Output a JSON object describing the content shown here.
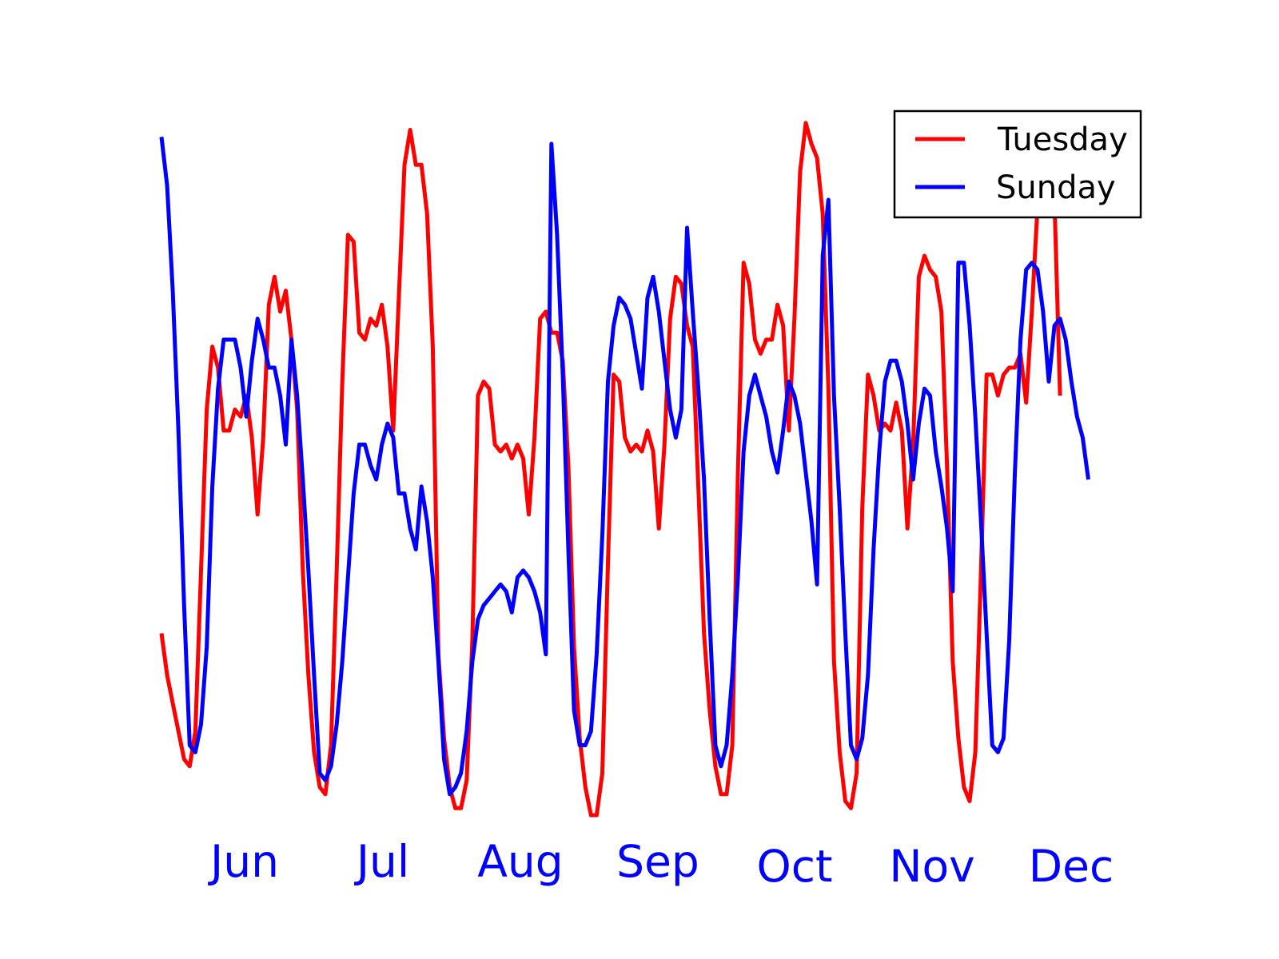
{
  "chart_data": {
    "type": "line",
    "title": "",
    "xlabel": "",
    "ylabel": "",
    "x_tick_labels": [
      "Jun",
      "Jul",
      "Aug",
      "Sep",
      "Oct",
      "Nov",
      "Dec"
    ],
    "tick_label_color": "#0000ff",
    "legend_position": "top-right",
    "axes_visible": false,
    "grid": false,
    "ylim": [
      0,
      1
    ],
    "series": [
      {
        "name": "Tuesday",
        "color": "#ff0000",
        "values": [
          0.26,
          0.2,
          0.16,
          0.12,
          0.08,
          0.07,
          0.12,
          0.35,
          0.58,
          0.67,
          0.64,
          0.55,
          0.55,
          0.58,
          0.57,
          0.6,
          0.54,
          0.43,
          0.54,
          0.73,
          0.77,
          0.72,
          0.75,
          0.68,
          0.58,
          0.35,
          0.2,
          0.09,
          0.04,
          0.03,
          0.1,
          0.35,
          0.62,
          0.83,
          0.82,
          0.69,
          0.68,
          0.71,
          0.7,
          0.73,
          0.67,
          0.55,
          0.74,
          0.93,
          0.98,
          0.93,
          0.93,
          0.86,
          0.67,
          0.23,
          0.11,
          0.04,
          0.01,
          0.01,
          0.05,
          0.25,
          0.6,
          0.62,
          0.61,
          0.53,
          0.52,
          0.53,
          0.51,
          0.53,
          0.51,
          0.43,
          0.54,
          0.71,
          0.72,
          0.69,
          0.69,
          0.65,
          0.5,
          0.24,
          0.11,
          0.04,
          0.0,
          0.0,
          0.06,
          0.36,
          0.63,
          0.62,
          0.54,
          0.52,
          0.53,
          0.52,
          0.55,
          0.52,
          0.41,
          0.53,
          0.71,
          0.77,
          0.76,
          0.7,
          0.67,
          0.47,
          0.26,
          0.15,
          0.07,
          0.03,
          0.03,
          0.1,
          0.49,
          0.79,
          0.76,
          0.68,
          0.66,
          0.68,
          0.68,
          0.73,
          0.7,
          0.55,
          0.71,
          0.92,
          0.99,
          0.96,
          0.94,
          0.86,
          0.61,
          0.22,
          0.09,
          0.02,
          0.01,
          0.06,
          0.44,
          0.63,
          0.6,
          0.55,
          0.56,
          0.55,
          0.59,
          0.55,
          0.41,
          0.53,
          0.77,
          0.8,
          0.78,
          0.77,
          0.72,
          0.5,
          0.22,
          0.11,
          0.04,
          0.02,
          0.09,
          0.35,
          0.63,
          0.63,
          0.6,
          0.63,
          0.64,
          0.64,
          0.66,
          0.59,
          0.72,
          0.87,
          0.95,
          0.91,
          0.88,
          0.6
        ]
      },
      {
        "name": "Sunday",
        "color": "#0000ff",
        "values": [
          0.97,
          0.9,
          0.75,
          0.55,
          0.3,
          0.1,
          0.09,
          0.13,
          0.24,
          0.47,
          0.61,
          0.68,
          0.68,
          0.68,
          0.64,
          0.57,
          0.65,
          0.71,
          0.68,
          0.64,
          0.64,
          0.6,
          0.53,
          0.68,
          0.6,
          0.48,
          0.35,
          0.2,
          0.06,
          0.05,
          0.07,
          0.13,
          0.22,
          0.34,
          0.46,
          0.53,
          0.53,
          0.5,
          0.48,
          0.53,
          0.56,
          0.54,
          0.46,
          0.46,
          0.41,
          0.38,
          0.47,
          0.42,
          0.34,
          0.22,
          0.08,
          0.03,
          0.04,
          0.06,
          0.12,
          0.22,
          0.28,
          0.3,
          0.31,
          0.32,
          0.33,
          0.32,
          0.29,
          0.34,
          0.35,
          0.34,
          0.32,
          0.29,
          0.23,
          0.96,
          0.83,
          0.63,
          0.38,
          0.15,
          0.1,
          0.1,
          0.12,
          0.23,
          0.4,
          0.62,
          0.7,
          0.74,
          0.73,
          0.71,
          0.66,
          0.61,
          0.74,
          0.77,
          0.72,
          0.65,
          0.58,
          0.54,
          0.58,
          0.84,
          0.72,
          0.61,
          0.48,
          0.28,
          0.1,
          0.07,
          0.1,
          0.2,
          0.34,
          0.52,
          0.6,
          0.63,
          0.6,
          0.57,
          0.52,
          0.49,
          0.55,
          0.62,
          0.6,
          0.56,
          0.49,
          0.42,
          0.33,
          0.8,
          0.88,
          0.6,
          0.44,
          0.26,
          0.1,
          0.08,
          0.11,
          0.2,
          0.38,
          0.52,
          0.62,
          0.65,
          0.65,
          0.62,
          0.56,
          0.48,
          0.56,
          0.61,
          0.6,
          0.52,
          0.47,
          0.41,
          0.32,
          0.79,
          0.79,
          0.7,
          0.57,
          0.42,
          0.26,
          0.1,
          0.09,
          0.11,
          0.25,
          0.49,
          0.68,
          0.78,
          0.79,
          0.78,
          0.72,
          0.62,
          0.7,
          0.71,
          0.68,
          0.62,
          0.57,
          0.54,
          0.48
        ]
      }
    ]
  }
}
